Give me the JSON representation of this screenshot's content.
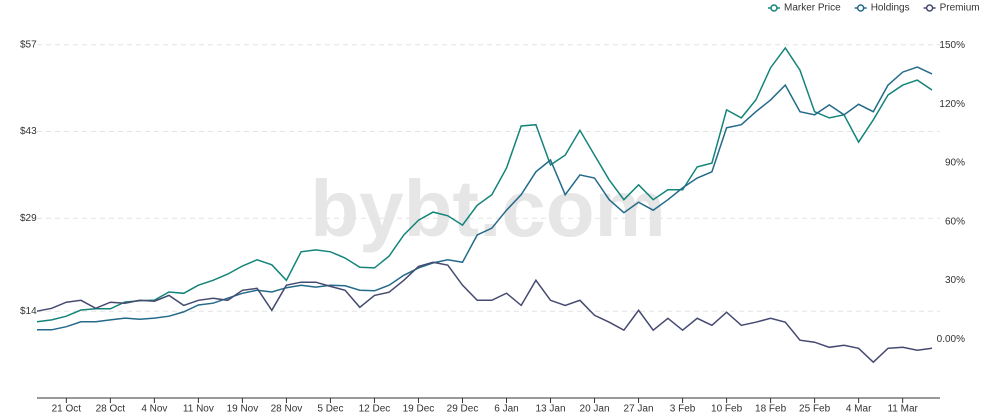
{
  "chart_data": {
    "type": "line",
    "watermark": "bybt.com",
    "categories": [
      null,
      null,
      "21 Oct",
      null,
      null,
      "28 Oct",
      null,
      null,
      "4 Nov",
      null,
      null,
      "11 Nov",
      null,
      null,
      "19 Nov",
      null,
      null,
      "28 Nov",
      null,
      null,
      "5 Dec",
      null,
      null,
      "12 Dec",
      null,
      null,
      "19 Dec",
      null,
      null,
      "29 Dec",
      null,
      null,
      "6 Jan",
      null,
      null,
      "13 Jan",
      null,
      null,
      "20 Jan",
      null,
      null,
      "27 Jan",
      null,
      null,
      "3 Feb",
      null,
      null,
      "10 Feb",
      null,
      null,
      "18 Feb",
      null,
      null,
      "25 Feb",
      null,
      null,
      "4 Mar",
      null,
      null,
      "11 Mar",
      null,
      null
    ],
    "series": [
      {
        "name": "Marker Price",
        "color": "#14847a",
        "values": [
          12.3,
          12.6,
          13.2,
          14.2,
          14.4,
          14.4,
          15.5,
          15.7,
          15.8,
          17.1,
          16.9,
          18.2,
          19.0,
          20.0,
          21.3,
          22.3,
          21.5,
          19.0,
          23.6,
          23.9,
          23.6,
          22.6,
          21.1,
          21.0,
          22.9,
          26.3,
          28.7,
          30.0,
          29.4,
          27.9,
          31.1,
          32.8,
          37.1,
          43.9,
          44.1,
          37.6,
          39.2,
          43.2,
          39.2,
          35.2,
          32.0,
          34.4,
          32.0,
          33.6,
          33.6,
          37.3,
          37.9,
          46.5,
          45.2,
          48.1,
          53.3,
          56.5,
          52.9,
          46.2,
          45.2,
          45.7,
          41.3,
          44.9,
          48.9,
          50.5,
          51.3,
          49.7
        ]
      },
      {
        "name": "Holdings",
        "color": "#246a8a",
        "values": [
          11.0,
          11.0,
          11.5,
          12.3,
          12.3,
          12.6,
          12.9,
          12.7,
          12.9,
          13.2,
          13.9,
          15.0,
          15.3,
          16.1,
          16.9,
          17.4,
          17.1,
          17.8,
          18.2,
          17.9,
          18.2,
          18.1,
          17.4,
          17.3,
          18.2,
          19.8,
          21.0,
          21.8,
          22.3,
          21.9,
          26.3,
          27.4,
          30.3,
          32.8,
          36.5,
          38.4,
          32.8,
          36.0,
          35.5,
          32.0,
          29.9,
          31.6,
          30.3,
          32.0,
          33.9,
          35.5,
          36.5,
          43.6,
          44.1,
          46.2,
          48.1,
          50.5,
          46.2,
          45.7,
          47.3,
          45.7,
          47.4,
          46.2,
          50.5,
          52.6,
          53.4,
          52.3
        ]
      },
      {
        "name": "Premium",
        "color": "#454a70",
        "axis": "y2",
        "values": [
          14.3,
          15.8,
          18.9,
          19.9,
          15.8,
          18.9,
          18.4,
          19.9,
          19.4,
          22.4,
          17.3,
          19.9,
          20.9,
          19.9,
          25.0,
          26.0,
          14.8,
          27.6,
          29.1,
          29.1,
          27.0,
          25.0,
          16.3,
          22.4,
          24.0,
          30.1,
          37.2,
          39.3,
          37.8,
          27.6,
          19.9,
          19.9,
          23.5,
          17.3,
          30.1,
          19.9,
          17.3,
          19.9,
          12.2,
          8.7,
          4.6,
          14.8,
          4.6,
          10.7,
          4.6,
          10.7,
          7.1,
          13.8,
          7.1,
          8.7,
          10.7,
          8.7,
          -0.5,
          -1.5,
          -4.1,
          -3.1,
          -4.6,
          -11.7,
          -4.6,
          -4.1,
          -5.6,
          -4.6
        ]
      }
    ],
    "ylim": [
      0,
      61
    ],
    "yticks": [
      {
        "value": 14,
        "label": "$14"
      },
      {
        "value": 29,
        "label": "$29"
      },
      {
        "value": 43,
        "label": "$43"
      },
      {
        "value": 57,
        "label": "$57"
      }
    ],
    "y2lim": [
      -30,
      163
    ],
    "y2ticks": [
      {
        "value": 0,
        "label": "0.00%"
      },
      {
        "value": 30,
        "label": "30%"
      },
      {
        "value": 60,
        "label": "60%"
      },
      {
        "value": 90,
        "label": "90%"
      },
      {
        "value": 120,
        "label": "120%"
      },
      {
        "value": 150,
        "label": "150%"
      }
    ],
    "grid": true,
    "legend": "top-right"
  }
}
